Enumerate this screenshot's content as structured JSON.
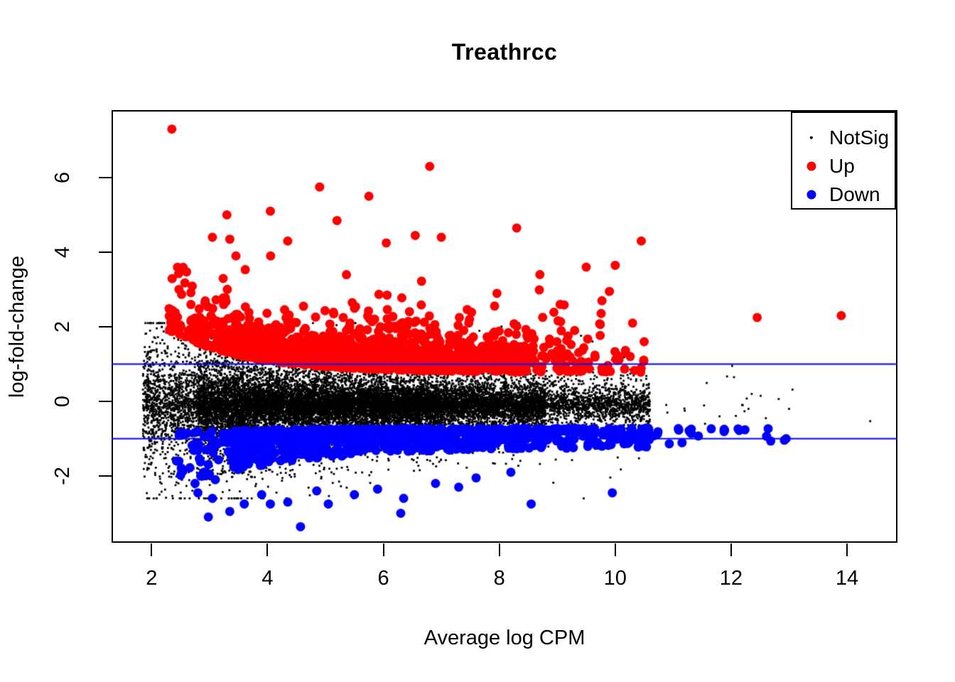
{
  "page": {
    "background": "#FFFFFF"
  },
  "chart_data": {
    "type": "scatter",
    "title": "Treathrcc",
    "xlabel": "Average log CPM",
    "ylabel": "log-fold-change",
    "x_ticks": [
      2,
      4,
      6,
      8,
      10,
      12,
      14
    ],
    "y_ticks": [
      -2,
      0,
      2,
      4,
      6
    ],
    "xlim": [
      1.31,
      14.87
    ],
    "ylim": [
      -3.79,
      7.81
    ],
    "grid": false,
    "axis_color": "#000000",
    "hlines": {
      "values": [
        1,
        -1
      ],
      "color": "#0000FF",
      "width": 2
    },
    "legend": {
      "position": "top-right",
      "entries": [
        {
          "label": "NotSig",
          "color": "#000000",
          "size": 2.2
        },
        {
          "label": "Up",
          "color": "#FF0000",
          "size": 6.5
        },
        {
          "label": "Down",
          "color": "#0000FF",
          "size": 6.5
        }
      ]
    },
    "series": [
      {
        "name": "NotSig",
        "color": "#000000",
        "marker": "square",
        "size": 2.8,
        "gen": {
          "seed": 42,
          "count": 18000,
          "model": "laplace",
          "strata": [
            [
              1.85,
              2.8,
              0.07
            ],
            [
              2.8,
              4.0,
              0.2
            ],
            [
              4.0,
              7.0,
              0.46
            ],
            [
              7.0,
              8.8,
              0.19
            ],
            [
              8.8,
              10.6,
              0.078
            ],
            [
              10.6,
              13.2,
              0.001
            ]
          ],
          "mean": -0.1,
          "b0": 0.26,
          "b1": 0.5,
          "bx": 1.8,
          "bk": 0.5,
          "clip": [
            -2.6,
            2.1
          ]
        },
        "points": [
          [
            14.4,
            -0.53
          ],
          [
            11.93,
            0.67
          ],
          [
            12.05,
            0.65
          ],
          [
            10.1,
            0.7
          ],
          [
            13.0,
            -0.2
          ],
          [
            12.6,
            -0.45
          ],
          [
            12.3,
            -0.2
          ],
          [
            11.2,
            -0.25
          ],
          [
            11.8,
            -0.4
          ],
          [
            12.2,
            -0.1
          ],
          [
            11.55,
            -0.6
          ],
          [
            10.9,
            -0.3
          ]
        ]
      },
      {
        "name": "Up",
        "color": "#FF0000",
        "marker": "circle",
        "size": 6.5,
        "gen": {
          "seed": 7,
          "count": 1750,
          "model": "above",
          "strata": [
            [
              2.3,
              3.2,
              0.06
            ],
            [
              3.2,
              4.2,
              0.23
            ],
            [
              4.2,
              6.8,
              0.44
            ],
            [
              6.8,
              8.5,
              0.2
            ],
            [
              8.5,
              9.6,
              0.05
            ],
            [
              9.6,
              10.6,
              0.02
            ]
          ],
          "l0": 0.78,
          "l1": 0.9,
          "lx": 2.6,
          "lk": 0.75,
          "tail": 0.38,
          "clip": [
            0.6,
            3.9
          ]
        },
        "points": [
          [
            2.35,
            7.3
          ],
          [
            6.8,
            6.3
          ],
          [
            4.9,
            5.75
          ],
          [
            5.75,
            5.5
          ],
          [
            4.05,
            5.1
          ],
          [
            3.3,
            5.0
          ],
          [
            5.2,
            4.85
          ],
          [
            8.3,
            4.65
          ],
          [
            6.55,
            4.45
          ],
          [
            7.0,
            4.4
          ],
          [
            3.05,
            4.4
          ],
          [
            3.35,
            4.35
          ],
          [
            4.35,
            4.3
          ],
          [
            10.45,
            4.3
          ],
          [
            6.05,
            4.25
          ],
          [
            2.36,
            2.44
          ],
          [
            12.45,
            2.25
          ],
          [
            13.9,
            2.3
          ],
          [
            10.0,
            3.65
          ],
          [
            9.5,
            3.6
          ],
          [
            8.7,
            3.4
          ],
          [
            9.9,
            2.95
          ],
          [
            10.3,
            2.1
          ],
          [
            9.05,
            2.6
          ],
          [
            9.3,
            1.9
          ],
          [
            10.5,
            1.6
          ]
        ]
      },
      {
        "name": "Down",
        "color": "#0000FF",
        "marker": "circle",
        "size": 6.5,
        "gen": {
          "seed": 11,
          "count": 950,
          "model": "below",
          "strata": [
            [
              2.45,
              3.4,
              0.05
            ],
            [
              3.4,
              4.5,
              0.17
            ],
            [
              4.5,
              7.0,
              0.41
            ],
            [
              7.0,
              9.0,
              0.23
            ],
            [
              9.0,
              10.6,
              0.1
            ],
            [
              10.6,
              13.0,
              0.035
            ]
          ],
          "t0": 0.72,
          "t1": 0.12,
          "tx": 2.4,
          "tk": 0.6,
          "d0": 0.5,
          "d1": 0.95,
          "dx": 2.4,
          "dk": 0.5,
          "pow": 1.6
        },
        "points": [
          [
            2.8,
            -2.45
          ],
          [
            2.98,
            -3.1
          ],
          [
            3.35,
            -2.95
          ],
          [
            4.57,
            -3.36
          ],
          [
            4.05,
            -2.75
          ],
          [
            4.35,
            -2.7
          ],
          [
            5.05,
            -2.75
          ],
          [
            5.5,
            -2.5
          ],
          [
            6.3,
            -3.0
          ],
          [
            6.35,
            -2.6
          ],
          [
            8.55,
            -2.75
          ],
          [
            7.3,
            -2.3
          ],
          [
            9.95,
            -2.45
          ],
          [
            5.9,
            -2.35
          ],
          [
            4.85,
            -2.4
          ],
          [
            3.9,
            -2.5
          ],
          [
            3.05,
            -2.6
          ],
          [
            2.75,
            -2.2
          ],
          [
            3.6,
            -2.75
          ],
          [
            2.9,
            -1.9
          ],
          [
            3.1,
            -2.1
          ],
          [
            12.95,
            -1.0
          ],
          [
            6.9,
            -2.2
          ],
          [
            7.6,
            -2.05
          ],
          [
            8.2,
            -1.9
          ],
          [
            2.54,
            -1.87
          ],
          [
            2.43,
            -1.6
          ]
        ]
      }
    ]
  }
}
